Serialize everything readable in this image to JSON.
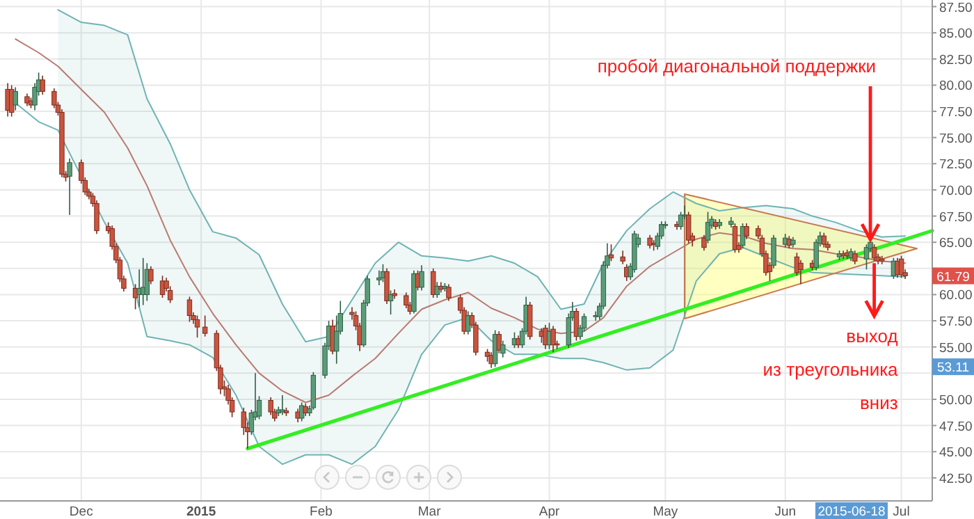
{
  "chart_data": {
    "type": "candlestick",
    "x": [
      "2014-11-12",
      "2014-11-13",
      "2014-11-14",
      "2014-11-17",
      "2014-11-18",
      "2014-11-19",
      "2014-11-20",
      "2014-11-21",
      "2014-11-24",
      "2014-11-25",
      "2014-11-26",
      "2014-11-27",
      "2014-11-28",
      "2014-12-01",
      "2014-12-02",
      "2014-12-03",
      "2014-12-04",
      "2014-12-05",
      "2014-12-08",
      "2014-12-09",
      "2014-12-10",
      "2014-12-11",
      "2014-12-12",
      "2014-12-15",
      "2014-12-16",
      "2014-12-17",
      "2014-12-18",
      "2014-12-19",
      "2014-12-22",
      "2014-12-23",
      "2014-12-24",
      "2014-12-29",
      "2014-12-30",
      "2014-12-31",
      "2015-01-02",
      "2015-01-05",
      "2015-01-06",
      "2015-01-07",
      "2015-01-08",
      "2015-01-09",
      "2015-01-12",
      "2015-01-13",
      "2015-01-14",
      "2015-01-15",
      "2015-01-16",
      "2015-01-19",
      "2015-01-20",
      "2015-01-21",
      "2015-01-22",
      "2015-01-23",
      "2015-01-26",
      "2015-01-27",
      "2015-01-28",
      "2015-01-29",
      "2015-01-30",
      "2015-02-02",
      "2015-02-03",
      "2015-02-04",
      "2015-02-05",
      "2015-02-06",
      "2015-02-09",
      "2015-02-10",
      "2015-02-11",
      "2015-02-12",
      "2015-02-13",
      "2015-02-16",
      "2015-02-17",
      "2015-02-18",
      "2015-02-19",
      "2015-02-20",
      "2015-02-23",
      "2015-02-24",
      "2015-02-25",
      "2015-02-26",
      "2015-02-27",
      "2015-03-02",
      "2015-03-03",
      "2015-03-04",
      "2015-03-05",
      "2015-03-06",
      "2015-03-09",
      "2015-03-10",
      "2015-03-11",
      "2015-03-12",
      "2015-03-13",
      "2015-03-16",
      "2015-03-17",
      "2015-03-18",
      "2015-03-19",
      "2015-03-20",
      "2015-03-23",
      "2015-03-24",
      "2015-03-25",
      "2015-03-26",
      "2015-03-27",
      "2015-03-30",
      "2015-03-31",
      "2015-04-01",
      "2015-04-02",
      "2015-04-03",
      "2015-04-06",
      "2015-04-07",
      "2015-04-08",
      "2015-04-09",
      "2015-04-10",
      "2015-04-13",
      "2015-04-14",
      "2015-04-15",
      "2015-04-16",
      "2015-04-17",
      "2015-04-20",
      "2015-04-21",
      "2015-04-22",
      "2015-04-23",
      "2015-04-24",
      "2015-04-27",
      "2015-04-28",
      "2015-04-29",
      "2015-04-30",
      "2015-05-01",
      "2015-05-04",
      "2015-05-05",
      "2015-05-06",
      "2015-05-07",
      "2015-05-08",
      "2015-05-11",
      "2015-05-12",
      "2015-05-13",
      "2015-05-14",
      "2015-05-15",
      "2015-05-18",
      "2015-05-19",
      "2015-05-20",
      "2015-05-21",
      "2015-05-22",
      "2015-05-25",
      "2015-05-26",
      "2015-05-27",
      "2015-05-28",
      "2015-05-29",
      "2015-06-01",
      "2015-06-02",
      "2015-06-03",
      "2015-06-04",
      "2015-06-05",
      "2015-06-08",
      "2015-06-09",
      "2015-06-10",
      "2015-06-11",
      "2015-06-12",
      "2015-06-15",
      "2015-06-16",
      "2015-06-17",
      "2015-06-18",
      "2015-06-19",
      "2015-06-22",
      "2015-06-23",
      "2015-06-24",
      "2015-06-25",
      "2015-06-26",
      "2015-06-29",
      "2015-06-30",
      "2015-07-01",
      "2015-07-02"
    ],
    "ohlc": [
      [
        79.6,
        80.2,
        77.0,
        77.6
      ],
      [
        79.6,
        80.0,
        77.0,
        77.4
      ],
      [
        78.1,
        79.8,
        77.6,
        79.4
      ],
      [
        78.9,
        79.2,
        78.0,
        78.3
      ],
      [
        78.5,
        78.8,
        77.8,
        78.1
      ],
      [
        78.1,
        80.2,
        77.6,
        79.8
      ],
      [
        79.4,
        81.2,
        79.0,
        80.5
      ],
      [
        80.5,
        80.9,
        79.1,
        79.4
      ],
      [
        79.4,
        79.7,
        77.8,
        78.1
      ],
      [
        78.1,
        78.4,
        77.1,
        77.4
      ],
      [
        77.4,
        77.7,
        71.2,
        71.5
      ],
      [
        71.5,
        71.8,
        70.8,
        71.2
      ],
      [
        71.3,
        73.0,
        67.6,
        72.6
      ],
      [
        72.6,
        72.9,
        70.6,
        70.9
      ],
      [
        70.9,
        71.2,
        69.5,
        69.8
      ],
      [
        69.8,
        70.1,
        69.1,
        69.4
      ],
      [
        69.4,
        69.7,
        68.4,
        68.7
      ],
      [
        68.7,
        69.0,
        65.8,
        66.1
      ],
      [
        66.5,
        66.9,
        65.8,
        66.1
      ],
      [
        66.3,
        66.6,
        64.3,
        64.6
      ],
      [
        64.6,
        64.9,
        63.0,
        63.3
      ],
      [
        63.3,
        63.6,
        61.2,
        61.5
      ],
      [
        61.5,
        61.8,
        60.3,
        60.6
      ],
      [
        60.6,
        61.0,
        58.6,
        59.7
      ],
      [
        60.0,
        62.4,
        58.8,
        60.6
      ],
      [
        60.0,
        63.5,
        59.0,
        60.7
      ],
      [
        60.0,
        63.0,
        59.4,
        62.4
      ],
      [
        62.4,
        62.7,
        61.0,
        61.3
      ],
      [
        61.3,
        61.8,
        59.7,
        60.0
      ],
      [
        61.3,
        61.6,
        60.3,
        60.6
      ],
      [
        60.4,
        60.8,
        59.2,
        59.5
      ],
      [
        59.5,
        59.8,
        57.4,
        58.0
      ],
      [
        58.0,
        58.3,
        57.2,
        57.6
      ],
      [
        57.6,
        58.0,
        55.9,
        56.9
      ],
      [
        56.9,
        58.0,
        56.0,
        56.3
      ],
      [
        56.3,
        56.6,
        52.7,
        53.0
      ],
      [
        53.0,
        53.3,
        50.5,
        51.0
      ],
      [
        51.2,
        51.8,
        50.3,
        51.0
      ],
      [
        51.0,
        51.4,
        49.5,
        49.9
      ],
      [
        49.9,
        50.2,
        48.3,
        48.8
      ],
      [
        48.8,
        49.2,
        46.6,
        47.3
      ],
      [
        47.3,
        47.8,
        45.3,
        46.9
      ],
      [
        46.9,
        49.0,
        46.6,
        48.7
      ],
      [
        48.3,
        52.5,
        48.0,
        48.8
      ],
      [
        48.4,
        50.3,
        48.1,
        49.9
      ],
      [
        49.9,
        50.2,
        48.5,
        48.8
      ],
      [
        48.8,
        49.1,
        47.9,
        48.2
      ],
      [
        48.7,
        49.3,
        48.4,
        49.0
      ],
      [
        48.8,
        50.4,
        48.5,
        49.0
      ],
      [
        48.9,
        49.2,
        48.4,
        48.7
      ],
      [
        48.8,
        49.1,
        47.8,
        48.2
      ],
      [
        48.2,
        49.7,
        47.9,
        49.4
      ],
      [
        49.3,
        49.6,
        48.4,
        48.7
      ],
      [
        48.7,
        49.4,
        48.4,
        49.1
      ],
      [
        49.2,
        52.6,
        49.0,
        52.3
      ],
      [
        52.3,
        55.4,
        52.0,
        55.1
      ],
      [
        55.1,
        57.5,
        54.7,
        57.0
      ],
      [
        57.0,
        57.6,
        54.3,
        54.6
      ],
      [
        54.6,
        58.0,
        53.4,
        56.5
      ],
      [
        56.5,
        59.4,
        56.2,
        58.2
      ],
      [
        58.3,
        58.8,
        57.6,
        58.1
      ],
      [
        58.0,
        58.4,
        56.6,
        57.0
      ],
      [
        57.0,
        57.3,
        54.6,
        55.2
      ],
      [
        55.2,
        59.5,
        55.0,
        59.2
      ],
      [
        59.2,
        61.8,
        58.9,
        61.5
      ],
      [
        61.4,
        62.3,
        60.9,
        61.6
      ],
      [
        61.6,
        62.9,
        61.2,
        62.2
      ],
      [
        62.2,
        62.5,
        59.1,
        59.4
      ],
      [
        59.4,
        60.4,
        58.1,
        60.0
      ],
      [
        60.1,
        60.5,
        59.6,
        59.9
      ],
      [
        59.9,
        60.2,
        58.7,
        59.0
      ],
      [
        59.0,
        59.3,
        58.1,
        58.4
      ],
      [
        58.4,
        62.3,
        58.2,
        62.0
      ],
      [
        62.0,
        62.3,
        60.4,
        60.7
      ],
      [
        60.7,
        62.8,
        60.4,
        62.2
      ],
      [
        62.2,
        62.5,
        59.7,
        60.0
      ],
      [
        60.0,
        61.2,
        59.7,
        60.8
      ],
      [
        60.8,
        61.2,
        60.2,
        60.5
      ],
      [
        60.6,
        61.1,
        60.3,
        60.8
      ],
      [
        60.7,
        61.0,
        59.4,
        59.7
      ],
      [
        59.7,
        60.0,
        58.2,
        58.5
      ],
      [
        58.5,
        58.8,
        56.2,
        56.5
      ],
      [
        56.5,
        58.4,
        56.2,
        58.0
      ],
      [
        58.0,
        58.3,
        56.8,
        57.1
      ],
      [
        57.1,
        57.4,
        54.2,
        54.5
      ],
      [
        54.5,
        54.8,
        53.6,
        54.1
      ],
      [
        54.2,
        54.5,
        53.0,
        53.4
      ],
      [
        53.4,
        56.6,
        53.1,
        56.2
      ],
      [
        56.2,
        56.5,
        54.4,
        54.7
      ],
      [
        54.4,
        55.6,
        54.0,
        55.2
      ],
      [
        55.2,
        56.4,
        54.9,
        55.8
      ],
      [
        55.8,
        56.1,
        54.9,
        55.2
      ],
      [
        55.2,
        56.8,
        54.9,
        56.5
      ],
      [
        56.5,
        59.8,
        56.2,
        59.0
      ],
      [
        59.0,
        59.3,
        55.7,
        56.0
      ],
      [
        56.5,
        56.8,
        55.4,
        56.0
      ],
      [
        56.8,
        57.1,
        54.8,
        55.2
      ],
      [
        55.2,
        57.3,
        54.8,
        56.5
      ],
      [
        56.7,
        57.0,
        54.5,
        55.2
      ],
      [
        55.3,
        55.6,
        54.8,
        55.2
      ],
      [
        55.2,
        58.2,
        54.9,
        57.8
      ],
      [
        57.8,
        59.3,
        57.5,
        58.4
      ],
      [
        58.4,
        58.7,
        55.6,
        56.0
      ],
      [
        56.0,
        57.1,
        55.7,
        56.8
      ],
      [
        56.8,
        58.2,
        56.5,
        57.9
      ],
      [
        57.9,
        58.4,
        57.5,
        58.0
      ],
      [
        57.9,
        59.2,
        57.6,
        58.9
      ],
      [
        58.9,
        63.2,
        58.6,
        62.8
      ],
      [
        62.8,
        64.9,
        62.5,
        63.7
      ],
      [
        63.8,
        64.8,
        63.2,
        63.5
      ],
      [
        63.6,
        64.2,
        62.9,
        63.2
      ],
      [
        62.6,
        62.9,
        61.3,
        61.7
      ],
      [
        61.7,
        63.0,
        61.4,
        62.7
      ],
      [
        62.4,
        66.1,
        62.1,
        65.8
      ],
      [
        64.8,
        65.8,
        64.5,
        65.4
      ],
      [
        65.4,
        65.7,
        64.4,
        64.7
      ],
      [
        64.9,
        65.2,
        64.2,
        64.8
      ],
      [
        64.6,
        65.9,
        64.3,
        65.6
      ],
      [
        65.6,
        67.0,
        65.3,
        66.7
      ],
      [
        66.6,
        67.0,
        66.3,
        66.7
      ],
      [
        66.7,
        67.0,
        66.2,
        66.5
      ],
      [
        66.5,
        67.9,
        66.2,
        67.6
      ],
      [
        67.5,
        68.5,
        67.2,
        67.6
      ],
      [
        67.6,
        67.9,
        64.9,
        65.2
      ],
      [
        65.6,
        65.9,
        64.6,
        65.2
      ],
      [
        65.4,
        65.7,
        64.2,
        64.5
      ],
      [
        65.2,
        67.9,
        64.9,
        66.9
      ],
      [
        66.6,
        67.5,
        66.3,
        67.2
      ],
      [
        66.9,
        67.2,
        66.2,
        66.5
      ],
      [
        66.6,
        67.2,
        66.3,
        66.9
      ],
      [
        66.7,
        67.4,
        66.4,
        67.0
      ],
      [
        66.5,
        66.8,
        64.0,
        64.3
      ],
      [
        64.7,
        65.0,
        64.0,
        64.3
      ],
      [
        64.7,
        66.8,
        64.4,
        66.5
      ],
      [
        66.5,
        66.8,
        65.3,
        65.6
      ],
      [
        66.3,
        66.6,
        65.3,
        65.6
      ],
      [
        65.4,
        65.7,
        63.6,
        63.9
      ],
      [
        63.9,
        64.2,
        61.8,
        62.1
      ],
      [
        62.8,
        63.1,
        61.3,
        62.2
      ],
      [
        62.8,
        65.7,
        62.5,
        65.4
      ],
      [
        64.8,
        65.8,
        64.5,
        65.4
      ],
      [
        65.3,
        65.6,
        64.4,
        64.7
      ],
      [
        64.8,
        65.5,
        64.5,
        65.2
      ],
      [
        63.6,
        64.0,
        61.8,
        62.1
      ],
      [
        63.0,
        63.3,
        61.0,
        62.4
      ],
      [
        63.0,
        63.3,
        62.3,
        62.6
      ],
      [
        62.6,
        65.3,
        62.3,
        65.0
      ],
      [
        64.9,
        66.0,
        64.6,
        65.6
      ],
      [
        65.6,
        65.9,
        64.5,
        64.8
      ],
      [
        64.8,
        65.1,
        64.2,
        64.5
      ],
      [
        63.6,
        64.2,
        63.3,
        63.9
      ],
      [
        63.9,
        64.2,
        63.4,
        63.7
      ],
      [
        64.0,
        64.3,
        63.4,
        63.7
      ],
      [
        63.5,
        64.4,
        63.2,
        64.1
      ],
      [
        63.9,
        64.2,
        62.9,
        63.2
      ],
      [
        63.4,
        64.8,
        62.4,
        64.5
      ],
      [
        64.4,
        65.3,
        64.1,
        65.0
      ],
      [
        64.5,
        64.8,
        63.2,
        63.5
      ],
      [
        63.6,
        63.9,
        62.9,
        63.2
      ],
      [
        63.4,
        63.7,
        62.9,
        63.2
      ],
      [
        61.8,
        63.5,
        61.5,
        63.2
      ],
      [
        63.2,
        63.5,
        61.6,
        61.9
      ],
      [
        63.4,
        63.7,
        61.6,
        61.9
      ],
      [
        62.1,
        62.4,
        61.5,
        61.79
      ]
    ],
    "series": [
      {
        "type": "line",
        "color": "#b97a70",
        "x": [
          "2014-11-14",
          "2014-11-20",
          "2014-11-25",
          "2014-12-01",
          "2014-12-07",
          "2014-12-13",
          "2014-12-18",
          "2014-12-24",
          "2014-12-29",
          "2015-01-04",
          "2015-01-10",
          "2015-01-16",
          "2015-01-22",
          "2015-01-28",
          "2015-02-03",
          "2015-02-09",
          "2015-02-15",
          "2015-02-21",
          "2015-02-27",
          "2015-03-05",
          "2015-03-11",
          "2015-03-17",
          "2015-03-23",
          "2015-03-29",
          "2015-04-04",
          "2015-04-10",
          "2015-04-15",
          "2015-04-21",
          "2015-04-27",
          "2015-05-03",
          "2015-05-09",
          "2015-05-15",
          "2015-05-21",
          "2015-05-27",
          "2015-06-03",
          "2015-06-08",
          "2015-06-14",
          "2015-06-20",
          "2015-06-26",
          "2015-07-02"
        ],
        "values": [
          84.4,
          83.1,
          81.8,
          79.6,
          77.4,
          74.0,
          70.4,
          65.2,
          61.7,
          58.2,
          55.2,
          52.5,
          50.8,
          49.7,
          50.4,
          52.2,
          53.9,
          56.3,
          58.6,
          59.5,
          60.2,
          58.7,
          57.8,
          56.7,
          56.3,
          56.5,
          57.8,
          60.8,
          62.7,
          64.0,
          65.3,
          65.9,
          65.6,
          64.9,
          64.4,
          64.3,
          63.9,
          63.6,
          63.2,
          63.0
        ],
        "lower": [
          null,
          null,
          75.7,
          71.3,
          66.9,
          63.0,
          56.0,
          55.6,
          55.2,
          54.0,
          50.4,
          45.5,
          43.8,
          44.7,
          44.7,
          43.8,
          45.5,
          49.0,
          54.3,
          57.1,
          57.8,
          55.6,
          54.3,
          54.3,
          53.9,
          53.9,
          53.5,
          52.8,
          53.0,
          54.7,
          61.3,
          63.9,
          64.5,
          63.6,
          62.6,
          62.1,
          62.0,
          61.9,
          61.8,
          61.7
        ],
        "upper": [
          null,
          null,
          87.2,
          86.0,
          85.7,
          84.8,
          78.7,
          74.4,
          70.0,
          66.0,
          65.4,
          63.8,
          59.1,
          55.5,
          56.0,
          59.5,
          63.0,
          65.0,
          63.7,
          63.5,
          63.2,
          63.7,
          63.0,
          61.7,
          58.6,
          59.1,
          63.0,
          66.1,
          68.2,
          69.8,
          68.7,
          68.0,
          68.3,
          68.5,
          68.2,
          67.5,
          66.9,
          66.1,
          65.5,
          65.6
        ]
      },
      {
        "type": "line",
        "color": "#6fb3b3",
        "x": [
          "2014-11-25",
          "2014-12-01",
          "2014-12-07",
          "2014-12-13",
          "2014-12-18",
          "2014-12-24",
          "2014-12-29",
          "2015-01-04",
          "2015-01-10",
          "2015-01-16",
          "2015-01-22",
          "2015-01-28",
          "2015-02-03",
          "2015-02-09",
          "2015-02-15",
          "2015-02-21",
          "2015-02-27",
          "2015-03-05",
          "2015-03-11",
          "2015-03-17",
          "2015-03-23",
          "2015-03-29",
          "2015-04-04",
          "2015-04-10",
          "2015-04-15",
          "2015-04-21",
          "2015-04-27",
          "2015-05-03",
          "2015-05-09",
          "2015-05-15",
          "2015-05-21",
          "2015-05-27",
          "2015-06-03",
          "2015-06-08",
          "2015-06-14",
          "2015-06-20",
          "2015-06-26",
          "2015-07-02"
        ],
        "values": [
          87.2,
          86.0,
          85.7,
          84.8,
          78.7,
          74.4,
          70.0,
          66.0,
          65.4,
          63.8,
          59.1,
          55.5,
          56.0,
          59.5,
          63.0,
          65.0,
          63.7,
          63.5,
          63.2,
          63.7,
          63.0,
          61.7,
          58.6,
          59.1,
          63.0,
          66.1,
          68.2,
          69.8,
          68.7,
          68.0,
          68.3,
          68.5,
          68.2,
          67.5,
          66.9,
          66.1,
          65.5,
          65.6
        ]
      },
      {
        "type": "line",
        "color": "#6fb3b3",
        "x": [
          "2014-11-14",
          "2014-11-20",
          "2014-11-25",
          "2014-12-01",
          "2014-12-07",
          "2014-12-13",
          "2014-12-18",
          "2014-12-24",
          "2014-12-29",
          "2015-01-04",
          "2015-01-10",
          "2015-01-16",
          "2015-01-22",
          "2015-01-28",
          "2015-02-03",
          "2015-02-09",
          "2015-02-15",
          "2015-02-21",
          "2015-02-27",
          "2015-03-05",
          "2015-03-11",
          "2015-03-17",
          "2015-03-23",
          "2015-03-29",
          "2015-04-04",
          "2015-04-10",
          "2015-04-15",
          "2015-04-21",
          "2015-04-27",
          "2015-05-03",
          "2015-05-09",
          "2015-05-15",
          "2015-05-21",
          "2015-05-27",
          "2015-06-03",
          "2015-06-08",
          "2015-06-14",
          "2015-06-20",
          "2015-06-26",
          "2015-07-02"
        ],
        "values": [
          78.3,
          76.5,
          75.7,
          71.3,
          66.9,
          63.0,
          56.0,
          55.6,
          55.2,
          54.0,
          50.4,
          45.5,
          43.8,
          44.7,
          44.7,
          43.8,
          45.5,
          49.0,
          54.3,
          57.1,
          57.8,
          55.6,
          54.3,
          54.3,
          53.9,
          53.9,
          53.5,
          52.8,
          53.0,
          54.7,
          61.3,
          63.9,
          64.5,
          63.6,
          62.6,
          62.1,
          62.0,
          61.9,
          61.8,
          61.7
        ]
      },
      {
        "type": "line",
        "color": "#c8784e",
        "x": [
          "2015-05-06",
          "2015-07-05"
        ],
        "values": [
          69.6,
          64.4
        ]
      },
      {
        "type": "line",
        "color": "#c8784e",
        "x": [
          "2015-05-06",
          "2015-07-05"
        ],
        "values": [
          57.7,
          64.4
        ]
      },
      {
        "type": "line",
        "color": "#33ee22",
        "x": [
          "2015-01-13",
          "2015-07-09"
        ],
        "values": [
          45.3,
          66.1
        ]
      }
    ],
    "xlim": [
      "2014-11-10",
      "2015-07-09"
    ],
    "xticks": [
      {
        "value": "2014-12-01",
        "label": "Dec"
      },
      {
        "value": "2015-01-01",
        "label": "2015"
      },
      {
        "value": "2015-02-01",
        "label": "Feb"
      },
      {
        "value": "2015-03-01",
        "label": "Mar"
      },
      {
        "value": "2015-04-01",
        "label": "Apr"
      },
      {
        "value": "2015-05-01",
        "label": "May"
      },
      {
        "value": "2015-06-01",
        "label": "Jun"
      },
      {
        "value": "2015-07-01",
        "label": "Jul"
      }
    ],
    "ylim": [
      40.3,
      87.6
    ],
    "yticks": [
      {
        "value": 42.5,
        "label": "42.50"
      },
      {
        "value": 45,
        "label": "45.00"
      },
      {
        "value": 47.5,
        "label": "47.50"
      },
      {
        "value": 50,
        "label": "50.00"
      },
      {
        "value": 52.5,
        "label": null
      },
      {
        "value": 55,
        "label": "55.00"
      },
      {
        "value": 57.5,
        "label": "57.50"
      },
      {
        "value": 60,
        "label": "60.00"
      },
      {
        "value": 62.5,
        "label": null
      },
      {
        "value": 65,
        "label": "65.00"
      },
      {
        "value": 67.5,
        "label": "67.50"
      },
      {
        "value": 70,
        "label": "70.00"
      },
      {
        "value": 72.5,
        "label": "72.50"
      },
      {
        "value": 75,
        "label": "75.00"
      },
      {
        "value": 77.5,
        "label": "77.50"
      },
      {
        "value": 80,
        "label": "80.00"
      },
      {
        "value": 82.5,
        "label": "82.50"
      },
      {
        "value": 85,
        "label": "85.00"
      },
      {
        "value": 87.5,
        "label": "87.50"
      }
    ],
    "grid": true,
    "annotations": [
      {
        "text": "пробой диагональной поддержки",
        "x": "2015-06-23",
        "y": 65.0
      },
      {
        "text": "выход\nиз треугольника\nвниз",
        "x": "2015-06-24",
        "y": 63.0
      },
      {
        "text": "61.79",
        "y": 61.79
      },
      {
        "text": "53.11",
        "y": 53.11
      },
      "2015-06-18"
    ]
  }
}
